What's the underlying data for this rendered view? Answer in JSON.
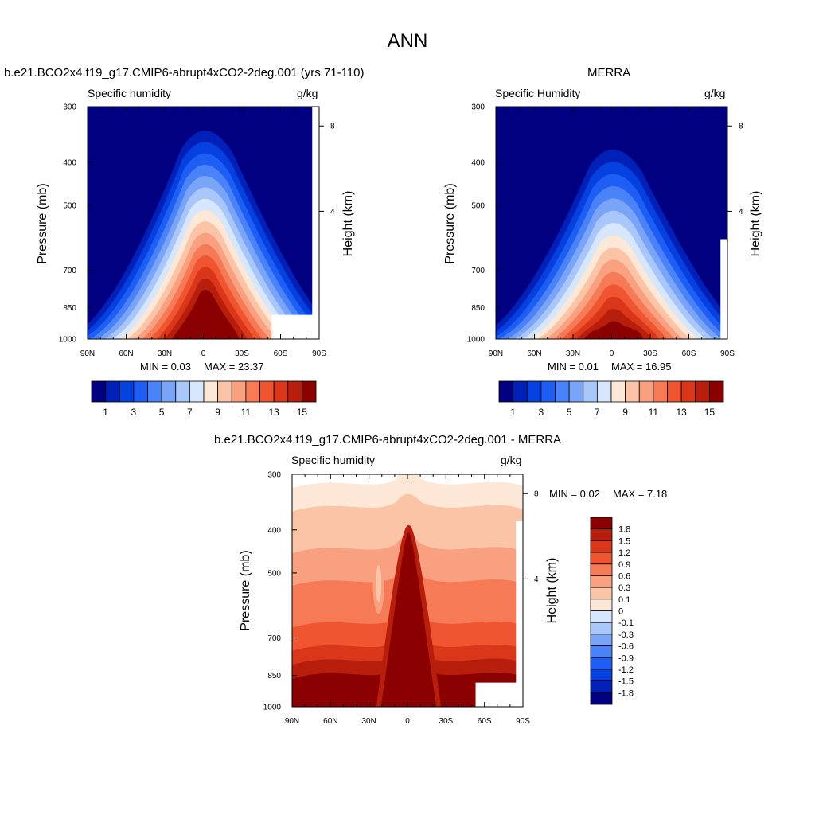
{
  "figure": {
    "title": "ANN"
  },
  "panels": [
    {
      "id": "model",
      "title": "b.e21.BCO2x4.f19_g17.CMIP6-abrupt4xCO2-2deg.001 (yrs 71-110)",
      "left_label": "Specific humidity",
      "right_label": "g/kg",
      "ylabel": "Pressure (mb)",
      "y2label": "Height (km)",
      "min_text": "MIN =   0.03",
      "max_text": "MAX =  23.37"
    },
    {
      "id": "obs",
      "title": "MERRA",
      "left_label": "Specific Humidity",
      "right_label": "g/kg",
      "ylabel": "Pressure (mb)",
      "y2label": "Height (km)",
      "min_text": "MIN =   0.01",
      "max_text": "MAX =  16.95"
    },
    {
      "id": "diff",
      "title": "b.e21.BCO2x4.f19_g17.CMIP6-abrupt4xCO2-2deg.001 - MERRA",
      "left_label": "Specific humidity",
      "right_label": "g/kg",
      "ylabel": "Pressure (mb)",
      "y2label": "Height (km)",
      "min_text": "MIN =   0.02",
      "max_text": "MAX =   7.18"
    }
  ],
  "axes": {
    "pressure_ticks": [
      "300",
      "400",
      "500",
      "700",
      "850",
      "1000"
    ],
    "latitude_ticks": [
      "90N",
      "60N",
      "30N",
      "0",
      "30S",
      "60S",
      "90S"
    ],
    "height_ticks": [
      "8",
      "4"
    ]
  },
  "colorbars": {
    "abs_labels": [
      "1",
      "3",
      "5",
      "7",
      "9",
      "11",
      "13",
      "15"
    ],
    "abs_colors": [
      "#000080",
      "#0020b8",
      "#0540e0",
      "#1f5ef5",
      "#4a82f8",
      "#7aa4f8",
      "#a9c6fa",
      "#d6e6fc",
      "#fde7d6",
      "#fbc4a6",
      "#f8a080",
      "#f57a55",
      "#ee5530",
      "#d9361a",
      "#b81e0c",
      "#8b0000"
    ],
    "diff_labels": [
      "1.8",
      "1.5",
      "1.2",
      "0.9",
      "0.6",
      "0.3",
      "0.1",
      "0",
      "-0.1",
      "-0.3",
      "-0.6",
      "-0.9",
      "-1.2",
      "-1.5",
      "-1.8"
    ],
    "diff_colors": [
      "#8b0000",
      "#b81e0c",
      "#d9361a",
      "#ee5530",
      "#f57a55",
      "#f8a080",
      "#fbc4a6",
      "#fde7d6",
      "#d6e6fc",
      "#a9c6fa",
      "#7aa4f8",
      "#4a82f8",
      "#1f5ef5",
      "#0540e0",
      "#0020b8",
      "#000080"
    ]
  },
  "chart_data": [
    {
      "type": "heatmap",
      "title": "b.e21.BCO2x4.f19_g17.CMIP6-abrupt4xCO2-2deg.001 (yrs 71-110)",
      "x_ticks": [
        "90N",
        "60N",
        "30N",
        "0",
        "30S",
        "60S",
        "90S"
      ],
      "y_ticks": [
        300,
        400,
        500,
        700,
        850,
        1000
      ],
      "y2_ticks_km": [
        8,
        4
      ],
      "levels": [
        1,
        2,
        3,
        4,
        5,
        6,
        7,
        8,
        9,
        10,
        11,
        12,
        13,
        14,
        15
      ],
      "min": 0.03,
      "max": 23.37,
      "units": "g/kg"
    },
    {
      "type": "heatmap",
      "title": "MERRA",
      "x_ticks": [
        "90N",
        "60N",
        "30N",
        "0",
        "30S",
        "60S",
        "90S"
      ],
      "y_ticks": [
        300,
        400,
        500,
        700,
        850,
        1000
      ],
      "y2_ticks_km": [
        8,
        4
      ],
      "levels": [
        1,
        2,
        3,
        4,
        5,
        6,
        7,
        8,
        9,
        10,
        11,
        12,
        13,
        14,
        15
      ],
      "min": 0.01,
      "max": 16.95,
      "units": "g/kg"
    },
    {
      "type": "heatmap",
      "title": "b.e21.BCO2x4.f19_g17.CMIP6-abrupt4xCO2-2deg.001 - MERRA",
      "x_ticks": [
        "90N",
        "60N",
        "30N",
        "0",
        "30S",
        "60S",
        "90S"
      ],
      "y_ticks": [
        300,
        400,
        500,
        700,
        850,
        1000
      ],
      "y2_ticks_km": [
        8,
        4
      ],
      "levels": [
        -1.8,
        -1.5,
        -1.2,
        -0.9,
        -0.6,
        -0.3,
        -0.1,
        0,
        0.1,
        0.3,
        0.6,
        0.9,
        1.2,
        1.5,
        1.8
      ],
      "min": 0.02,
      "max": 7.18,
      "units": "g/kg"
    }
  ]
}
